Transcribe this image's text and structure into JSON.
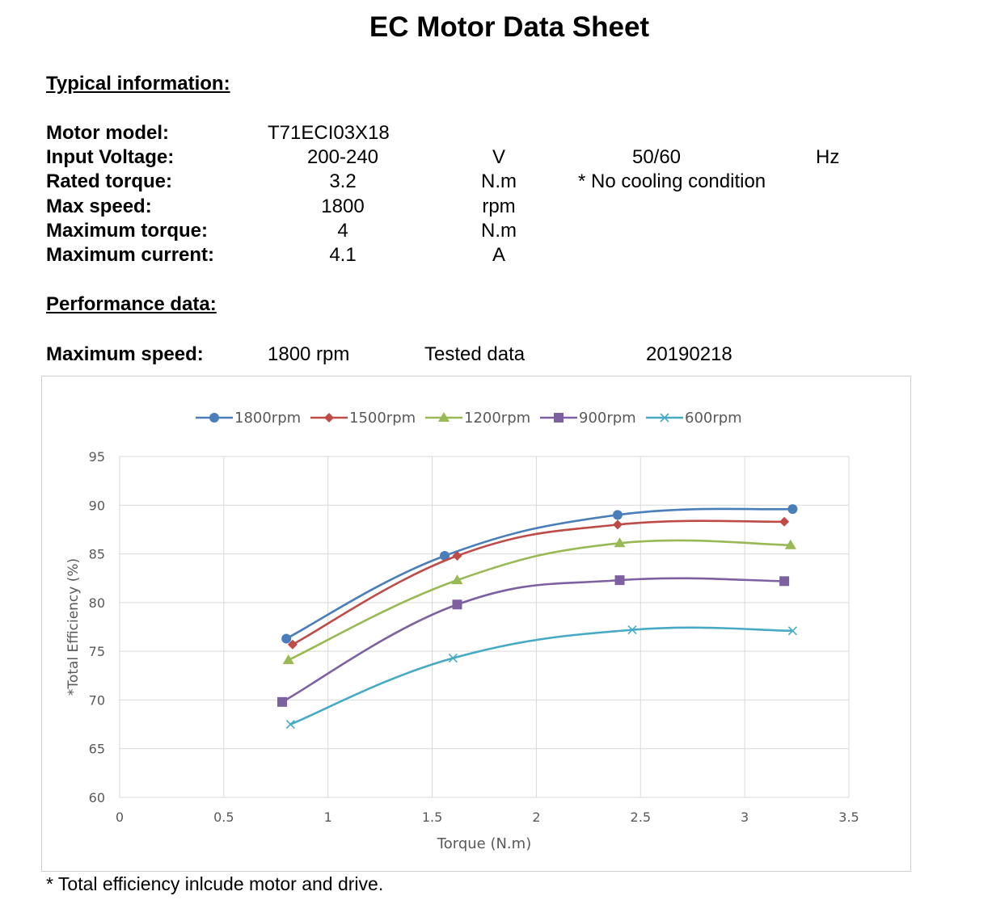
{
  "title": "EC Motor Data Sheet",
  "typical": {
    "heading": "Typical information:",
    "rows": [
      {
        "label": "Motor model:",
        "value": "T71ECI03X18",
        "unit": "",
        "extra": "",
        "extra_unit": ""
      },
      {
        "label": "Input Voltage:",
        "value": "200-240",
        "unit": "V",
        "extra": "50/60",
        "extra_unit": "Hz"
      },
      {
        "label": "Rated torque:",
        "value": "3.2",
        "unit": "N.m",
        "extra": "* No cooling condition",
        "extra_unit": ""
      },
      {
        "label": "Max speed:",
        "value": "1800",
        "unit": "rpm",
        "extra": "",
        "extra_unit": ""
      },
      {
        "label": "Maximum torque:",
        "value": "4",
        "unit": "N.m",
        "extra": "",
        "extra_unit": ""
      },
      {
        "label": "Maximum current:",
        "value": "4.1",
        "unit": "A",
        "extra": "",
        "extra_unit": ""
      }
    ]
  },
  "performance": {
    "heading": "Performance data:",
    "max_speed_label": "Maximum speed:",
    "max_speed_value": "1800 rpm",
    "tested_label": "Tested data",
    "tested_value": "20190218"
  },
  "footnote": "* Total efficiency inlcude motor and drive.",
  "chart_data": {
    "type": "line",
    "xlabel": "Torque (N.m)",
    "ylabel": "*Total Efficiency (%)",
    "xlim": [
      0,
      3.5
    ],
    "ylim": [
      60,
      95
    ],
    "xticks": [
      "0",
      "0.5",
      "1",
      "1.5",
      "2",
      "2.5",
      "3",
      "3.5"
    ],
    "yticks": [
      "60",
      "65",
      "70",
      "75",
      "80",
      "85",
      "90",
      "95"
    ],
    "grid": true,
    "legend": "top",
    "series": [
      {
        "name": "1800rpm",
        "color": "#4a7ebb",
        "marker": "circle",
        "points": [
          [
            0.8,
            76.3
          ],
          [
            1.56,
            84.8
          ],
          [
            2.39,
            89.0
          ],
          [
            3.23,
            89.6
          ]
        ]
      },
      {
        "name": "1500rpm",
        "color": "#be4b48",
        "marker": "diamond",
        "points": [
          [
            0.83,
            75.7
          ],
          [
            1.62,
            84.8
          ],
          [
            2.39,
            88.0
          ],
          [
            3.19,
            88.3
          ]
        ]
      },
      {
        "name": "1200rpm",
        "color": "#98b954",
        "marker": "triangle",
        "points": [
          [
            0.81,
            74.1
          ],
          [
            1.62,
            82.3
          ],
          [
            2.4,
            86.1
          ],
          [
            3.22,
            85.9
          ]
        ]
      },
      {
        "name": "900rpm",
        "color": "#7d60a0",
        "marker": "square",
        "points": [
          [
            0.78,
            69.8
          ],
          [
            1.62,
            79.8
          ],
          [
            2.4,
            82.3
          ],
          [
            3.19,
            82.2
          ]
        ]
      },
      {
        "name": "600rpm",
        "color": "#46aac5",
        "marker": "x",
        "points": [
          [
            0.82,
            67.5
          ],
          [
            1.6,
            74.3
          ],
          [
            2.46,
            77.2
          ],
          [
            3.23,
            77.1
          ]
        ]
      }
    ]
  }
}
